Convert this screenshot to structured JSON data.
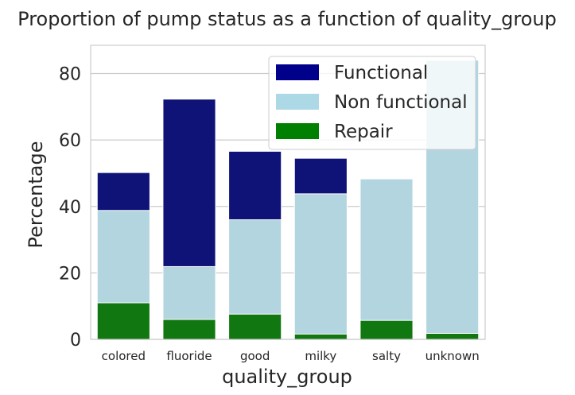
{
  "chart_data": {
    "type": "bar",
    "title": "Proportion of pump status as a function of quality_group",
    "xlabel": "quality_group",
    "ylabel": "Percentage",
    "categories": [
      "colored",
      "fluoride",
      "good",
      "milky",
      "salty",
      "unknown"
    ],
    "ylim": [
      0,
      88.5
    ],
    "yticks": [
      0,
      20,
      40,
      60,
      80
    ],
    "grid": true,
    "legend_position": "top-right",
    "overlay": true,
    "series": [
      {
        "name": "Functional",
        "color": "#0f1277",
        "legend_color": "#00008b",
        "values": [
          50.2,
          72.3,
          56.6,
          54.5,
          0,
          0
        ]
      },
      {
        "name": "Non functional",
        "color": "#b3d5e0",
        "legend_color": "#add8e6",
        "values": [
          38.8,
          21.9,
          36.0,
          43.8,
          48.3,
          84.0
        ]
      },
      {
        "name": "Repair",
        "color": "#117711",
        "legend_color": "#008000",
        "values": [
          11.0,
          6.0,
          7.6,
          1.6,
          5.7,
          1.8
        ]
      }
    ]
  }
}
